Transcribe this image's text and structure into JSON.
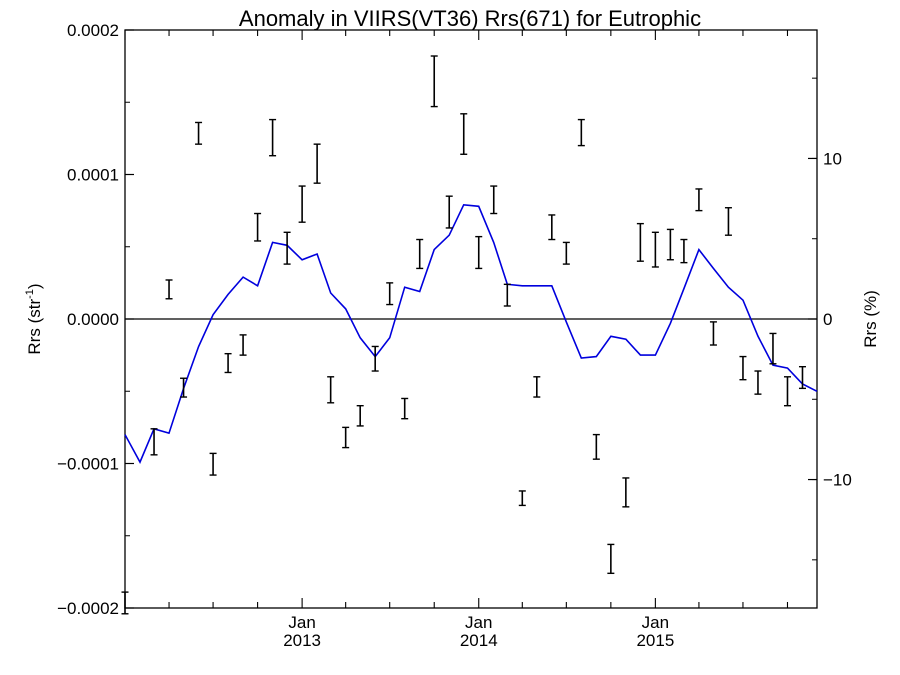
{
  "chart_data": {
    "type": "line",
    "title": "Anomaly in VIIRS(VT36) Rrs(671) for Eutrophic",
    "ylabel": {
      "base": "Rrs (str",
      "sup": "-1",
      "close": ")"
    },
    "y2label": "Rrs (%)",
    "ylim": [
      -0.0002,
      0.0002
    ],
    "y2lim": [
      -18,
      18
    ],
    "xlim": [
      "2012-01-01",
      "2015-12-01"
    ],
    "y_ticks": [
      {
        "value": 0.0002,
        "label": "0.0002"
      },
      {
        "value": 0.0001,
        "label": "0.0001"
      },
      {
        "value": 0.0,
        "label": "0.0000"
      },
      {
        "value": -0.0001,
        "label": "−0.0001"
      },
      {
        "value": -0.0002,
        "label": "−0.0002"
      }
    ],
    "y2_ticks": [
      {
        "value": 10,
        "label": "10"
      },
      {
        "value": 0,
        "label": "0"
      },
      {
        "value": -10,
        "label": "−10"
      }
    ],
    "x_major_ticks": [
      {
        "date": "2013-01-01",
        "label": "Jan",
        "year": "2013"
      },
      {
        "date": "2014-01-01",
        "label": "Jan",
        "year": "2014"
      },
      {
        "date": "2015-01-01",
        "label": "Jan",
        "year": "2015"
      }
    ],
    "zero_line": true,
    "grid": false,
    "series": [
      {
        "kind": "line",
        "color": "#0000dd",
        "x": [
          "2012-01-01",
          "2012-02-01",
          "2012-03-01",
          "2012-04-01",
          "2012-05-01",
          "2012-06-01",
          "2012-07-01",
          "2012-08-01",
          "2012-09-01",
          "2012-10-01",
          "2012-11-01",
          "2012-12-01",
          "2013-01-01",
          "2013-02-01",
          "2013-03-01",
          "2013-04-01",
          "2013-05-01",
          "2013-06-01",
          "2013-07-01",
          "2013-08-01",
          "2013-09-01",
          "2013-10-01",
          "2013-11-01",
          "2013-12-01",
          "2014-01-01",
          "2014-02-01",
          "2014-03-01",
          "2014-04-01",
          "2014-05-01",
          "2014-06-01",
          "2014-07-01",
          "2014-08-01",
          "2014-09-01",
          "2014-10-01",
          "2014-11-01",
          "2014-12-01",
          "2015-01-01",
          "2015-02-01",
          "2015-03-01",
          "2015-04-01",
          "2015-05-01",
          "2015-06-01",
          "2015-07-01",
          "2015-08-01",
          "2015-09-01",
          "2015-10-01",
          "2015-11-01",
          "2015-12-01"
        ],
        "y": [
          -8e-05,
          -9.9e-05,
          -7.6e-05,
          -7.9e-05,
          -4.8e-05,
          -1.9e-05,
          3e-06,
          1.7e-05,
          2.9e-05,
          2.3e-05,
          5.3e-05,
          5.1e-05,
          4.1e-05,
          4.5e-05,
          1.8e-05,
          7e-06,
          -1.3e-05,
          -2.6e-05,
          -1.3e-05,
          2.2e-05,
          1.9e-05,
          4.8e-05,
          5.8e-05,
          7.9e-05,
          7.8e-05,
          5.3e-05,
          2.4e-05,
          2.3e-05,
          2.3e-05,
          2.3e-05,
          -2e-06,
          -2.7e-05,
          -2.6e-05,
          -1.2e-05,
          -1.4e-05,
          -2.5e-05,
          -2.5e-05,
          -3e-06,
          2.1e-05,
          4.8e-05,
          3.5e-05,
          2.2e-05,
          1.3e-05,
          -1.2e-05,
          -3.2e-05,
          -3.4e-05,
          -4.5e-05,
          -5e-05
        ]
      },
      {
        "kind": "errorbar",
        "color": "#000000",
        "x": [
          "2012-01-01",
          "2012-03-01",
          "2012-04-01",
          "2012-05-01",
          "2012-06-01",
          "2012-07-01",
          "2012-08-01",
          "2012-09-01",
          "2012-10-01",
          "2012-11-01",
          "2012-12-01",
          "2013-01-01",
          "2013-02-01",
          "2013-03-01",
          "2013-04-01",
          "2013-05-01",
          "2013-06-01",
          "2013-07-01",
          "2013-08-01",
          "2013-09-01",
          "2013-10-01",
          "2013-11-01",
          "2013-12-01",
          "2014-01-01",
          "2014-02-01",
          "2014-03-01",
          "2014-04-01",
          "2014-05-01",
          "2014-06-01",
          "2014-07-01",
          "2014-08-01",
          "2014-09-01",
          "2014-10-01",
          "2014-11-01",
          "2014-12-01",
          "2015-01-01",
          "2015-02-01",
          "2015-03-01",
          "2015-04-01",
          "2015-05-01",
          "2015-06-01",
          "2015-07-01",
          "2015-08-01",
          "2015-09-01",
          "2015-10-01",
          "2015-11-01"
        ],
        "low": [
          -0.000204,
          -9.4e-05,
          1.4e-05,
          -5.4e-05,
          0.000121,
          -0.000108,
          -3.7e-05,
          -2.5e-05,
          5.4e-05,
          0.000113,
          3.8e-05,
          6.7e-05,
          9.4e-05,
          -5.8e-05,
          -8.9e-05,
          -7.4e-05,
          -3.6e-05,
          1e-05,
          -6.9e-05,
          3.5e-05,
          0.000147,
          6.3e-05,
          0.000114,
          3.5e-05,
          7.3e-05,
          9e-06,
          -0.000129,
          -5.4e-05,
          5.5e-05,
          3.8e-05,
          0.00012,
          -9.7e-05,
          -0.000176,
          -0.00013,
          4e-05,
          3.6e-05,
          4.1e-05,
          3.9e-05,
          7.5e-05,
          -1.8e-05,
          5.8e-05,
          -4.2e-05,
          -5.2e-05,
          -3.1e-05,
          -6e-05,
          -4.8e-05
        ],
        "high": [
          -0.000189,
          -7.6e-05,
          2.7e-05,
          -4.1e-05,
          0.000136,
          -9.3e-05,
          -2.4e-05,
          -1.1e-05,
          7.3e-05,
          0.000138,
          6e-05,
          9.2e-05,
          0.000121,
          -4e-05,
          -7.5e-05,
          -6e-05,
          -1.9e-05,
          2.5e-05,
          -5.5e-05,
          5.5e-05,
          0.000182,
          8.5e-05,
          0.000142,
          5.7e-05,
          9.2e-05,
          2.4e-05,
          -0.000119,
          -4e-05,
          7.2e-05,
          5.3e-05,
          0.000138,
          -8e-05,
          -0.000156,
          -0.00011,
          6.6e-05,
          6e-05,
          6.2e-05,
          5.5e-05,
          9e-05,
          -2e-06,
          7.7e-05,
          -2.6e-05,
          -3.6e-05,
          -1e-05,
          -4e-05,
          -3.3e-05
        ]
      }
    ]
  }
}
